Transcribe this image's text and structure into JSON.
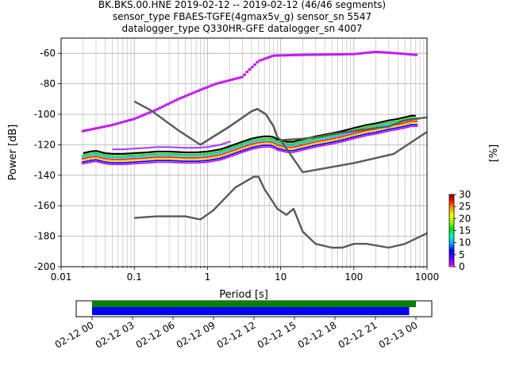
{
  "title_lines": [
    "BK.BKS.00.HNE   2019-02-12 -- 2019-02-12  (46/46 segments)",
    "sensor_type FBAES-TGFE(4gmax5v_g) sensor_sn 5547",
    "datalogger_type Q330HR-GFE datalogger_sn 4007"
  ],
  "colorbar": {
    "label": "[%]",
    "ticks": [
      "0",
      "5",
      "10",
      "15",
      "20",
      "25",
      "30"
    ]
  },
  "timeline": {
    "ticks": [
      "02-12 00",
      "02-12 03",
      "02-12 06",
      "02-12 09",
      "02-12 12",
      "02-12 15",
      "02-12 18",
      "02-12 21",
      "02-13 00"
    ],
    "bars": [
      {
        "color": "#008000",
        "start_hours": 0.0,
        "end_hours": 24.0
      },
      {
        "color": "#0000ff",
        "start_hours": 0.0,
        "end_hours": 23.5
      }
    ]
  },
  "chart_data": {
    "type": "line",
    "xscale": "log",
    "xlabel": "Period [s]",
    "ylabel": "Power [dB]",
    "xlim": [
      0.01,
      1000
    ],
    "ylim": [
      -200,
      -50
    ],
    "grid": true,
    "x_tick_labels": [
      "0.01",
      "0.1",
      "1",
      "10",
      "100",
      "1000"
    ],
    "y_tick_labels": [
      "-200",
      "-180",
      "-160",
      "-140",
      "-120",
      "-100",
      "-80",
      "-60"
    ],
    "series": [
      {
        "color": "#000000",
        "points": [
          [
            0.02,
            -125.5
          ],
          [
            0.025,
            -124.5
          ],
          [
            0.03,
            -124
          ],
          [
            0.04,
            -125.5
          ],
          [
            0.05,
            -126
          ],
          [
            0.07,
            -126
          ],
          [
            0.1,
            -125.5
          ],
          [
            0.15,
            -125
          ],
          [
            0.2,
            -124.5
          ],
          [
            0.3,
            -124.5
          ],
          [
            0.5,
            -125
          ],
          [
            0.7,
            -125
          ],
          [
            1,
            -124.5
          ],
          [
            1.5,
            -123
          ],
          [
            2,
            -121
          ],
          [
            3,
            -118
          ],
          [
            4,
            -116
          ],
          [
            5,
            -115
          ],
          [
            6,
            -114.5
          ],
          [
            7,
            -114.5
          ],
          [
            8,
            -115
          ],
          [
            9,
            -116.5
          ],
          [
            10,
            -117
          ],
          [
            12,
            -118
          ],
          [
            15,
            -118
          ],
          [
            20,
            -116.5
          ],
          [
            30,
            -114.5
          ],
          [
            50,
            -112.5
          ],
          [
            70,
            -111
          ],
          [
            100,
            -109
          ],
          [
            150,
            -107
          ],
          [
            200,
            -106
          ],
          [
            300,
            -104
          ],
          [
            400,
            -103
          ],
          [
            500,
            -102
          ],
          [
            600,
            -101
          ],
          [
            700,
            -101
          ]
        ]
      },
      {
        "color": "#5a5a5a",
        "points": [
          [
            0.1,
            -91.5
          ],
          [
            0.17,
            -97.5
          ],
          [
            0.4,
            -110.5
          ],
          [
            0.8,
            -120
          ],
          [
            2,
            -108
          ],
          [
            4,
            -98
          ],
          [
            4.8,
            -96.5
          ],
          [
            6.3,
            -100
          ],
          [
            8,
            -108
          ],
          [
            9,
            -115
          ],
          [
            10,
            -117
          ],
          [
            20,
            -116
          ],
          [
            30,
            -115
          ],
          [
            50,
            -113
          ],
          [
            100,
            -111
          ],
          [
            200,
            -109
          ],
          [
            300,
            -108
          ],
          [
            500,
            -104
          ],
          [
            700,
            -103
          ],
          [
            1000,
            -102
          ]
        ]
      },
      {
        "color": "#5a5a5a",
        "points": [
          [
            0.1,
            -168
          ],
          [
            0.2,
            -167
          ],
          [
            0.5,
            -167
          ],
          [
            0.8,
            -169
          ],
          [
            1.2,
            -163
          ],
          [
            2.4,
            -148
          ],
          [
            4.3,
            -141
          ],
          [
            5,
            -141
          ],
          [
            6,
            -149
          ],
          [
            9,
            -162
          ],
          [
            12,
            -166
          ],
          [
            15,
            -162
          ],
          [
            20,
            -177
          ],
          [
            30,
            -185
          ],
          [
            50,
            -187.5
          ],
          [
            70,
            -187.5
          ],
          [
            100,
            -185
          ],
          [
            150,
            -185
          ],
          [
            300,
            -187.5
          ],
          [
            500,
            -185
          ],
          [
            1000,
            -178
          ]
        ]
      },
      {
        "color": "#5a5a5a",
        "points": [
          [
            0.8,
            -120
          ],
          [
            2,
            -108
          ],
          [
            4,
            -98
          ],
          [
            4.8,
            -96.5
          ],
          [
            6.3,
            -100
          ],
          [
            8,
            -108
          ],
          [
            9,
            -115
          ],
          [
            10,
            -117
          ],
          [
            20,
            -138
          ],
          [
            30,
            -136.5
          ],
          [
            100,
            -132
          ],
          [
            350,
            -126
          ],
          [
            1000,
            -111.5
          ]
        ]
      }
    ]
  }
}
